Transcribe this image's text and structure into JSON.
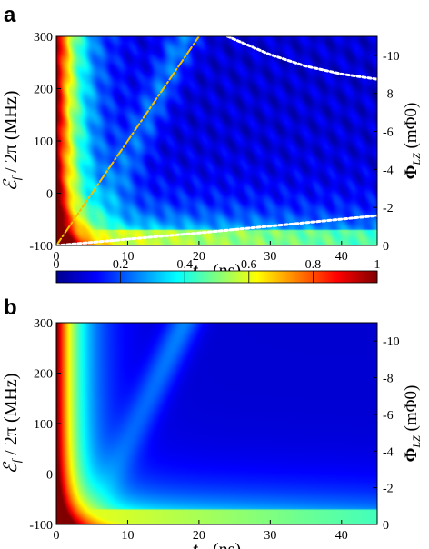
{
  "figure": {
    "panels": [
      {
        "letter": "a"
      },
      {
        "letter": "b"
      }
    ]
  },
  "chart_data": [
    {
      "type": "heatmap",
      "panel": "a",
      "xlabel": "t_sp (ns)",
      "ylabel": "ℰ_f / 2π (MHz)",
      "y2label": "Φ_LZ (mΦ0)",
      "xlim": [
        0,
        45
      ],
      "ylim": [
        -100,
        300
      ],
      "y2lim": [
        0,
        -11
      ],
      "x_ticks": [
        0,
        10,
        20,
        30,
        40
      ],
      "y_ticks": [
        -100,
        0,
        100,
        200,
        300
      ],
      "y2_ticks": [
        0,
        -2,
        -4,
        -6,
        -8,
        -10
      ],
      "overlays": [
        {
          "kind": "line",
          "style": "dash-dot",
          "color": "#f2c200",
          "x": [
            0,
            20
          ],
          "y": [
            -100,
            300
          ]
        },
        {
          "kind": "curve",
          "style": "dotted",
          "color": "#ffffff",
          "x": [
            0,
            10,
            20,
            30,
            45
          ],
          "y": [
            -100,
            -88,
            -76,
            -63,
            -43
          ]
        },
        {
          "kind": "curve",
          "style": "dotted",
          "color": "#ffffff",
          "x": [
            24,
            30,
            35,
            40,
            45
          ],
          "y": [
            300,
            265,
            243,
            228,
            218
          ]
        }
      ],
      "grid": false
    },
    {
      "type": "heatmap",
      "panel": "b",
      "xlabel": "t_sp (ns)",
      "ylabel": "ℰ_f / 2π (MHz)",
      "y2label": "Φ_LZ (mΦ0)",
      "xlim": [
        0,
        45
      ],
      "ylim": [
        -100,
        300
      ],
      "y2lim": [
        0,
        -11
      ],
      "x_ticks": [
        0,
        10,
        20,
        30,
        40
      ],
      "y_ticks": [
        -100,
        0,
        100,
        200,
        300
      ],
      "y2_ticks": [
        0,
        -2,
        -4,
        -6,
        -8,
        -10
      ],
      "grid": false
    }
  ],
  "colorbar": {
    "min": 0,
    "max": 1,
    "ticks": [
      0,
      0.2,
      0.4,
      0.6,
      0.8,
      1
    ],
    "tick_labels": [
      "0",
      "0.2",
      "0.4",
      "0.6",
      "0.8",
      "1"
    ],
    "colormap": "jet"
  },
  "colors": {
    "dashdot_line": "#f2c200",
    "dotted_curve": "#ffffff"
  }
}
